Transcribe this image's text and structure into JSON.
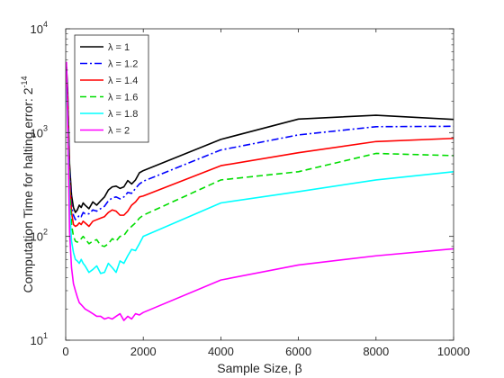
{
  "chart_data": {
    "type": "line",
    "title": "",
    "xlabel": "Sample Size, β",
    "ylabel": "Computation Time for halting error: 2",
    "ylabel_exponent": "-14",
    "x_scale": "linear",
    "y_scale": "log",
    "xlim": [
      0,
      10000
    ],
    "ylim": [
      10,
      10000
    ],
    "x_ticks": [
      0,
      2000,
      4000,
      6000,
      8000,
      10000
    ],
    "x_tick_labels": [
      "0",
      "2000",
      "4000",
      "6000",
      "8000",
      "10000"
    ],
    "y_ticks": [
      10,
      100,
      1000,
      10000
    ],
    "y_tick_labels": [
      {
        "base": "10",
        "exp": "1"
      },
      {
        "base": "10",
        "exp": "2"
      },
      {
        "base": "10",
        "exp": "3"
      },
      {
        "base": "10",
        "exp": "4"
      }
    ],
    "grid": false,
    "legend_position": "top-left",
    "series": [
      {
        "name": "λ = 1",
        "color": "#000000",
        "dash": "solid",
        "points": [
          [
            20,
            4300
          ],
          [
            50,
            2600
          ],
          [
            100,
            500
          ],
          [
            150,
            250
          ],
          [
            200,
            190
          ],
          [
            250,
            170
          ],
          [
            300,
            180
          ],
          [
            350,
            200
          ],
          [
            400,
            190
          ],
          [
            450,
            210
          ],
          [
            500,
            200
          ],
          [
            600,
            185
          ],
          [
            700,
            215
          ],
          [
            800,
            200
          ],
          [
            900,
            220
          ],
          [
            1000,
            240
          ],
          [
            1100,
            280
          ],
          [
            1200,
            300
          ],
          [
            1300,
            305
          ],
          [
            1400,
            290
          ],
          [
            1500,
            300
          ],
          [
            1600,
            345
          ],
          [
            1700,
            320
          ],
          [
            1800,
            350
          ],
          [
            1900,
            410
          ],
          [
            2000,
            430
          ],
          [
            4000,
            860
          ],
          [
            6000,
            1350
          ],
          [
            8000,
            1470
          ],
          [
            10000,
            1340
          ]
        ]
      },
      {
        "name": "λ = 1.2",
        "color": "#0000ff",
        "dash": "dashdot",
        "points": [
          [
            20,
            4000
          ],
          [
            50,
            2300
          ],
          [
            100,
            420
          ],
          [
            150,
            200
          ],
          [
            200,
            160
          ],
          [
            250,
            145
          ],
          [
            300,
            150
          ],
          [
            350,
            160
          ],
          [
            400,
            155
          ],
          [
            450,
            170
          ],
          [
            500,
            165
          ],
          [
            600,
            165
          ],
          [
            700,
            180
          ],
          [
            800,
            175
          ],
          [
            900,
            185
          ],
          [
            1000,
            195
          ],
          [
            1100,
            220
          ],
          [
            1200,
            235
          ],
          [
            1300,
            240
          ],
          [
            1400,
            230
          ],
          [
            1500,
            240
          ],
          [
            1600,
            265
          ],
          [
            1700,
            260
          ],
          [
            1800,
            290
          ],
          [
            1900,
            320
          ],
          [
            2000,
            340
          ],
          [
            4000,
            680
          ],
          [
            6000,
            950
          ],
          [
            8000,
            1140
          ],
          [
            10000,
            1150
          ]
        ]
      },
      {
        "name": "λ = 1.4",
        "color": "#ff0000",
        "dash": "solid",
        "points": [
          [
            20,
            3600
          ],
          [
            50,
            2000
          ],
          [
            100,
            350
          ],
          [
            150,
            170
          ],
          [
            200,
            130
          ],
          [
            250,
            125
          ],
          [
            300,
            128
          ],
          [
            350,
            135
          ],
          [
            400,
            130
          ],
          [
            450,
            140
          ],
          [
            500,
            135
          ],
          [
            600,
            125
          ],
          [
            700,
            140
          ],
          [
            800,
            145
          ],
          [
            900,
            150
          ],
          [
            1000,
            155
          ],
          [
            1100,
            170
          ],
          [
            1200,
            180
          ],
          [
            1300,
            175
          ],
          [
            1400,
            160
          ],
          [
            1500,
            160
          ],
          [
            1600,
            175
          ],
          [
            1700,
            200
          ],
          [
            1800,
            215
          ],
          [
            1900,
            240
          ],
          [
            2000,
            245
          ],
          [
            4000,
            480
          ],
          [
            6000,
            640
          ],
          [
            8000,
            820
          ],
          [
            10000,
            880
          ]
        ]
      },
      {
        "name": "λ = 1.6",
        "color": "#00dd00",
        "dash": "dashed",
        "points": [
          [
            20,
            3200
          ],
          [
            50,
            1700
          ],
          [
            100,
            280
          ],
          [
            150,
            130
          ],
          [
            200,
            100
          ],
          [
            250,
            90
          ],
          [
            300,
            88
          ],
          [
            350,
            92
          ],
          [
            400,
            95
          ],
          [
            450,
            100
          ],
          [
            500,
            95
          ],
          [
            600,
            85
          ],
          [
            700,
            90
          ],
          [
            800,
            93
          ],
          [
            900,
            82
          ],
          [
            1000,
            80
          ],
          [
            1100,
            85
          ],
          [
            1200,
            95
          ],
          [
            1300,
            90
          ],
          [
            1400,
            100
          ],
          [
            1500,
            102
          ],
          [
            1600,
            115
          ],
          [
            1700,
            125
          ],
          [
            1800,
            135
          ],
          [
            1900,
            150
          ],
          [
            2000,
            160
          ],
          [
            4000,
            350
          ],
          [
            6000,
            420
          ],
          [
            8000,
            630
          ],
          [
            10000,
            600
          ]
        ]
      },
      {
        "name": "λ = 1.8",
        "color": "#00ffff",
        "dash": "solid",
        "points": [
          [
            20,
            2700
          ],
          [
            50,
            1300
          ],
          [
            100,
            200
          ],
          [
            150,
            90
          ],
          [
            200,
            70
          ],
          [
            250,
            60
          ],
          [
            300,
            58
          ],
          [
            350,
            55
          ],
          [
            400,
            60
          ],
          [
            450,
            55
          ],
          [
            500,
            52
          ],
          [
            600,
            45
          ],
          [
            700,
            48
          ],
          [
            800,
            52
          ],
          [
            900,
            44
          ],
          [
            1000,
            45
          ],
          [
            1100,
            55
          ],
          [
            1200,
            50
          ],
          [
            1300,
            45
          ],
          [
            1400,
            58
          ],
          [
            1500,
            55
          ],
          [
            1600,
            65
          ],
          [
            1700,
            75
          ],
          [
            1800,
            73
          ],
          [
            1900,
            85
          ],
          [
            2000,
            100
          ],
          [
            4000,
            210
          ],
          [
            6000,
            270
          ],
          [
            8000,
            350
          ],
          [
            10000,
            420
          ]
        ]
      },
      {
        "name": "λ = 2",
        "color": "#ff00ff",
        "dash": "solid",
        "points": [
          [
            20,
            4800
          ],
          [
            50,
            1200
          ],
          [
            100,
            110
          ],
          [
            150,
            50
          ],
          [
            200,
            35
          ],
          [
            250,
            30
          ],
          [
            300,
            26
          ],
          [
            350,
            23
          ],
          [
            400,
            22
          ],
          [
            500,
            20
          ],
          [
            600,
            19
          ],
          [
            700,
            18
          ],
          [
            800,
            17
          ],
          [
            900,
            17
          ],
          [
            1000,
            16
          ],
          [
            1100,
            16.5
          ],
          [
            1200,
            16
          ],
          [
            1300,
            17
          ],
          [
            1400,
            18
          ],
          [
            1500,
            15.5
          ],
          [
            1600,
            17
          ],
          [
            1700,
            16
          ],
          [
            1800,
            18
          ],
          [
            1900,
            17.5
          ],
          [
            2000,
            18.5
          ],
          [
            4000,
            38
          ],
          [
            6000,
            53
          ],
          [
            8000,
            65
          ],
          [
            10000,
            76
          ]
        ]
      }
    ]
  }
}
